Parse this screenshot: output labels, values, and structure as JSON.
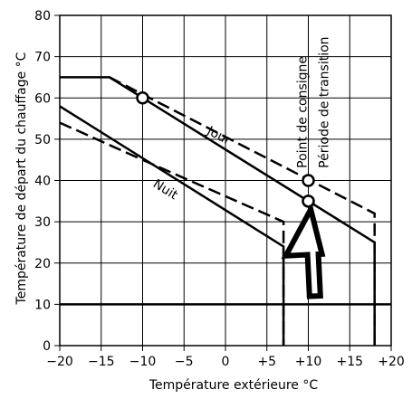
{
  "chart_data": {
    "type": "line",
    "xlabel": "Température extérieure  °C",
    "ylabel": "Température de départ du chauffage  °C",
    "xlim": [
      -20,
      20
    ],
    "ylim": [
      0,
      80
    ],
    "x_ticks": [
      "−20",
      "−15",
      "−10",
      "−5",
      "0",
      "+5",
      "+10",
      "+15",
      "+20"
    ],
    "x_tick_values": [
      -20,
      -15,
      -10,
      -5,
      0,
      5,
      10,
      15,
      20
    ],
    "y_ticks": [
      "0",
      "10",
      "20",
      "30",
      "40",
      "50",
      "60",
      "70",
      "80"
    ],
    "y_tick_values": [
      0,
      10,
      20,
      30,
      40,
      50,
      60,
      70,
      80
    ],
    "grid": true,
    "series": [
      {
        "name": "Jour",
        "style": "solid",
        "points": [
          [
            -20,
            65
          ],
          [
            -14,
            65
          ],
          [
            18,
            25
          ],
          [
            18,
            0
          ]
        ]
      },
      {
        "name": "",
        "style": "dashed",
        "points": [
          [
            -14,
            65
          ],
          [
            18,
            32
          ],
          [
            18,
            0
          ]
        ]
      },
      {
        "name": "Nuit",
        "style": "solid",
        "points": [
          [
            -20,
            58
          ],
          [
            7,
            24
          ],
          [
            7,
            0
          ]
        ]
      },
      {
        "name": "",
        "style": "dashed",
        "points": [
          [
            -20,
            54
          ],
          [
            -10,
            45
          ],
          [
            7,
            30
          ],
          [
            7,
            0
          ]
        ]
      },
      {
        "name": "",
        "style": "solid",
        "points": [
          [
            -20,
            10
          ],
          [
            20,
            10
          ]
        ]
      }
    ],
    "markers": [
      {
        "x": -10,
        "y": 60
      },
      {
        "x": 10,
        "y": 40
      },
      {
        "x": 10,
        "y": 35
      }
    ],
    "annotations": [
      {
        "text": "Jour",
        "x": -1,
        "y": 50,
        "angle": 28
      },
      {
        "text": "Nuit",
        "x": -7.5,
        "y": 37,
        "angle": 32
      },
      {
        "text": "Point de consigne",
        "x": 9.8,
        "y": 43,
        "angle": -90
      },
      {
        "text": "Période de transition",
        "x": 12.4,
        "y": 43,
        "angle": -90
      }
    ],
    "arrow": {
      "tip": [
        10.3,
        33
      ],
      "tail": [
        10.8,
        12
      ]
    }
  }
}
